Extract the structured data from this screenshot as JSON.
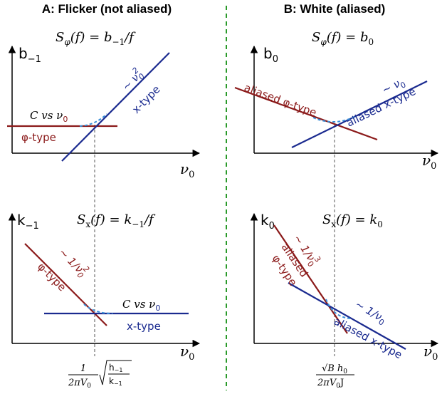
{
  "colors": {
    "phi": "#8b1a1a",
    "x": "#1a2a8f",
    "dash": "#3a8fd8",
    "divider": "#2a9a2a",
    "guide": "#555555"
  },
  "panelA": {
    "header": "A:  Flicker (not aliased)",
    "top": {
      "formula_lhs": "S",
      "formula_sub": "φ",
      "formula_mid": "(f) = b",
      "formula_rsub": "−1",
      "formula_tail": "/f",
      "y_axis": "b",
      "y_axis_sub": "−1",
      "x_axis": "ν",
      "x_axis_sub": "0",
      "label_cvs": "C vs ν",
      "label_cvs_sub": "0",
      "label_phi": "φ-type",
      "label_slope": "∼ ν",
      "label_slope_sub": "0",
      "label_slope_sup": "2",
      "label_x": "x-type"
    },
    "bottom": {
      "formula_lhs": "S",
      "formula_sub": "x",
      "formula_mid": "(f) = k",
      "formula_rsub": "−1",
      "formula_tail": "/f",
      "y_axis": "k",
      "y_axis_sub": "−1",
      "x_axis": "ν",
      "x_axis_sub": "0",
      "label_slope": "∼ 1/ν",
      "label_slope_sub": "0",
      "label_slope_sup": "2",
      "label_phi": "φ-type",
      "label_cvs": "C vs ν",
      "label_cvs_sub": "0",
      "label_x": "x-type"
    },
    "crossover": {
      "num": "1",
      "den": "2πV",
      "den_sub": "0",
      "rad_num": "h",
      "rad_num_sub": "−1",
      "rad_den": "k",
      "rad_den_sub": "−1"
    }
  },
  "panelB": {
    "header": "B:  White (aliased)",
    "top": {
      "formula_lhs": "S",
      "formula_sub": "φ",
      "formula_mid": "(f) = b",
      "formula_rsub": "0",
      "y_axis": "b",
      "y_axis_sub": "0",
      "x_axis": "ν",
      "x_axis_sub": "0",
      "label_phi": "aliased φ-type",
      "label_slope": "∼ ν",
      "label_slope_sub": "0",
      "label_x": "aliased x-type"
    },
    "bottom": {
      "formula_lhs": "S",
      "formula_sub": "x",
      "formula_mid": "(f) = k",
      "formula_rsub": "0",
      "y_axis": "k",
      "y_axis_sub": "0",
      "x_axis": "ν",
      "x_axis_sub": "0",
      "label_slope": "∼ 1/ν",
      "label_slope_sub": "0",
      "label_slope_sup": "3",
      "label_phi_1": "aliased",
      "label_phi_2": "φ-type",
      "label_slope2": "∼ 1/ν",
      "label_slope2_sub": "0",
      "label_x": "aliased x-type"
    },
    "crossover": {
      "num": "√B h",
      "num_sub": "0",
      "den": "2πV",
      "den_sub": "0",
      "den_tail": "J"
    }
  }
}
